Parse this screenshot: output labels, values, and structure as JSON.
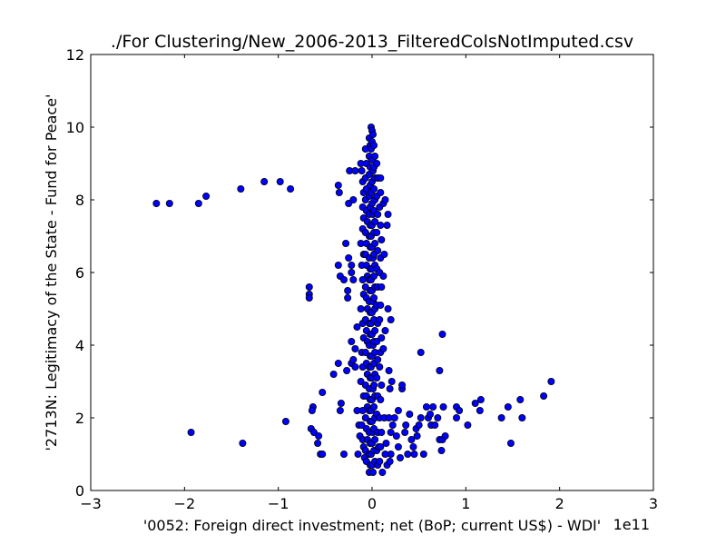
{
  "chart_data": {
    "type": "scatter",
    "title": "./For Clustering/New_2006-2013_FilteredColsNotImputed.csv",
    "xlabel": "'0052: Foreign direct investment; net  (BoP; current US$) - WDI'",
    "ylabel": "'2713N: Legitimacy of the State - Fund for Peace'",
    "x_offset_text": "1e11",
    "xlim": [
      -3,
      3
    ],
    "ylim": [
      0,
      12
    ],
    "x_ticks": [
      -3,
      -2,
      -1,
      0,
      1,
      2,
      3
    ],
    "x_tick_labels": [
      "−3",
      "−2",
      "−1",
      "0",
      "1",
      "2",
      "3"
    ],
    "y_ticks": [
      0,
      2,
      4,
      6,
      8,
      10,
      12
    ],
    "y_tick_labels": [
      "0",
      "2",
      "4",
      "6",
      "8",
      "10",
      "12"
    ],
    "grid": false,
    "marker_color": "#0000ff",
    "marker_edge_color": "#000000",
    "points": [
      [
        -2.3,
        7.9
      ],
      [
        -2.16,
        7.9
      ],
      [
        -1.85,
        7.9
      ],
      [
        -1.77,
        8.1
      ],
      [
        -1.4,
        8.3
      ],
      [
        -1.15,
        8.5
      ],
      [
        -0.98,
        8.5
      ],
      [
        -0.87,
        8.3
      ],
      [
        -1.93,
        1.6
      ],
      [
        -1.38,
        1.3
      ],
      [
        -0.92,
        1.9
      ],
      [
        -0.67,
        5.6
      ],
      [
        -0.67,
        5.4
      ],
      [
        -0.67,
        5.3
      ],
      [
        -0.63,
        2.3
      ],
      [
        -0.64,
        2.2
      ],
      [
        -0.65,
        1.7
      ],
      [
        -0.62,
        1.6
      ],
      [
        -0.57,
        1.5
      ],
      [
        -0.58,
        1.3
      ],
      [
        -0.55,
        1.0
      ],
      [
        -0.53,
        1.0
      ],
      [
        -0.53,
        2.7
      ],
      [
        -0.41,
        3.2
      ],
      [
        -0.36,
        3.5
      ],
      [
        -0.33,
        2.4
      ],
      [
        -0.34,
        2.2
      ],
      [
        -0.3,
        1.0
      ],
      [
        -0.27,
        3.3
      ],
      [
        -0.36,
        8.4
      ],
      [
        -0.35,
        8.2
      ],
      [
        -0.25,
        7.9
      ],
      [
        -0.2,
        8.0
      ],
      [
        -0.24,
        8.8
      ],
      [
        -0.18,
        8.8
      ],
      [
        -0.36,
        6.2
      ],
      [
        -0.34,
        5.9
      ],
      [
        -0.3,
        5.8
      ],
      [
        -0.26,
        5.5
      ],
      [
        -0.28,
        6.8
      ],
      [
        -0.25,
        6.4
      ],
      [
        -0.22,
        6.0
      ],
      [
        -0.2,
        5.8
      ],
      [
        -0.26,
        5.3
      ],
      [
        -0.22,
        6.2
      ],
      [
        -0.22,
        3.5
      ],
      [
        -0.2,
        3.6
      ],
      [
        -0.18,
        3.4
      ],
      [
        -0.22,
        4.1
      ],
      [
        -0.18,
        3.9
      ],
      [
        -0.16,
        4.5
      ],
      [
        -0.16,
        2.2
      ],
      [
        -0.14,
        1.8
      ],
      [
        -0.13,
        1.5
      ],
      [
        -0.15,
        1.0
      ],
      [
        -0.12,
        9.0
      ],
      [
        -0.11,
        8.8
      ],
      [
        -0.1,
        8.5
      ],
      [
        -0.09,
        8.2
      ],
      [
        -0.1,
        7.8
      ],
      [
        -0.09,
        7.5
      ],
      [
        -0.1,
        7.2
      ],
      [
        -0.12,
        6.8
      ],
      [
        -0.09,
        6.5
      ],
      [
        -0.11,
        6.2
      ],
      [
        -0.1,
        5.8
      ],
      [
        -0.09,
        5.4
      ],
      [
        -0.12,
        5.0
      ],
      [
        -0.1,
        4.6
      ],
      [
        -0.09,
        4.2
      ],
      [
        -0.11,
        3.8
      ],
      [
        -0.1,
        3.4
      ],
      [
        -0.12,
        3.0
      ],
      [
        -0.09,
        2.6
      ],
      [
        -0.1,
        2.2
      ],
      [
        -0.11,
        1.8
      ],
      [
        -0.1,
        1.4
      ],
      [
        -0.09,
        1.2
      ],
      [
        -0.08,
        0.9
      ],
      [
        -0.07,
        9.4
      ],
      [
        -0.06,
        9.0
      ],
      [
        -0.07,
        8.6
      ],
      [
        -0.06,
        8.3
      ],
      [
        -0.07,
        8.0
      ],
      [
        -0.06,
        7.7
      ],
      [
        -0.05,
        7.4
      ],
      [
        -0.07,
        7.1
      ],
      [
        -0.06,
        6.8
      ],
      [
        -0.07,
        6.5
      ],
      [
        -0.06,
        6.2
      ],
      [
        -0.05,
        5.9
      ],
      [
        -0.07,
        5.6
      ],
      [
        -0.06,
        5.3
      ],
      [
        -0.05,
        5.0
      ],
      [
        -0.07,
        4.7
      ],
      [
        -0.06,
        4.4
      ],
      [
        -0.05,
        4.1
      ],
      [
        -0.07,
        3.8
      ],
      [
        -0.06,
        3.5
      ],
      [
        -0.05,
        3.2
      ],
      [
        -0.07,
        2.9
      ],
      [
        -0.06,
        2.6
      ],
      [
        -0.05,
        2.3
      ],
      [
        -0.07,
        2.0
      ],
      [
        -0.06,
        1.7
      ],
      [
        -0.05,
        1.4
      ],
      [
        -0.07,
        1.1
      ],
      [
        -0.06,
        0.8
      ],
      [
        -0.03,
        0.5
      ],
      [
        -0.03,
        9.7
      ],
      [
        -0.02,
        9.5
      ],
      [
        -0.03,
        9.2
      ],
      [
        -0.02,
        8.9
      ],
      [
        -0.03,
        8.7
      ],
      [
        -0.02,
        8.4
      ],
      [
        -0.03,
        8.1
      ],
      [
        -0.02,
        7.8
      ],
      [
        -0.03,
        7.6
      ],
      [
        -0.02,
        7.3
      ],
      [
        -0.03,
        7.0
      ],
      [
        -0.02,
        6.7
      ],
      [
        -0.03,
        6.4
      ],
      [
        -0.02,
        6.1
      ],
      [
        -0.03,
        5.8
      ],
      [
        -0.02,
        5.5
      ],
      [
        -0.03,
        5.2
      ],
      [
        -0.02,
        4.9
      ],
      [
        -0.03,
        4.6
      ],
      [
        -0.02,
        4.3
      ],
      [
        -0.03,
        4.0
      ],
      [
        -0.02,
        3.7
      ],
      [
        -0.03,
        3.4
      ],
      [
        -0.02,
        3.1
      ],
      [
        -0.03,
        2.8
      ],
      [
        -0.02,
        2.5
      ],
      [
        -0.03,
        2.2
      ],
      [
        -0.02,
        1.9
      ],
      [
        -0.03,
        1.6
      ],
      [
        -0.02,
        1.3
      ],
      [
        -0.03,
        1.0
      ],
      [
        -0.02,
        0.7
      ],
      [
        -0.01,
        10.0
      ],
      [
        0.0,
        9.9
      ],
      [
        0.01,
        9.8
      ],
      [
        0.0,
        9.6
      ],
      [
        -0.01,
        9.4
      ],
      [
        0.0,
        9.1
      ],
      [
        0.01,
        8.8
      ],
      [
        0.0,
        8.5
      ],
      [
        -0.01,
        8.2
      ],
      [
        0.0,
        7.9
      ],
      [
        0.01,
        7.6
      ],
      [
        0.0,
        7.3
      ],
      [
        -0.01,
        7.0
      ],
      [
        0.0,
        6.7
      ],
      [
        0.01,
        6.4
      ],
      [
        0.0,
        6.1
      ],
      [
        -0.01,
        5.8
      ],
      [
        0.0,
        5.5
      ],
      [
        0.01,
        5.2
      ],
      [
        0.0,
        4.9
      ],
      [
        -0.01,
        4.6
      ],
      [
        0.0,
        4.3
      ],
      [
        0.01,
        4.0
      ],
      [
        0.0,
        3.7
      ],
      [
        -0.01,
        3.4
      ],
      [
        0.0,
        3.1
      ],
      [
        0.01,
        2.8
      ],
      [
        0.0,
        2.5
      ],
      [
        -0.01,
        2.2
      ],
      [
        0.0,
        1.9
      ],
      [
        0.01,
        1.6
      ],
      [
        0.0,
        1.3
      ],
      [
        -0.01,
        1.0
      ],
      [
        0.0,
        0.7
      ],
      [
        0.01,
        0.5
      ],
      [
        0.02,
        9.5
      ],
      [
        0.03,
        9.2
      ],
      [
        0.02,
        8.9
      ],
      [
        0.03,
        8.6
      ],
      [
        0.02,
        8.3
      ],
      [
        0.03,
        8.0
      ],
      [
        0.02,
        7.7
      ],
      [
        0.03,
        7.4
      ],
      [
        0.02,
        7.1
      ],
      [
        0.03,
        6.8
      ],
      [
        0.02,
        6.5
      ],
      [
        0.03,
        6.2
      ],
      [
        0.02,
        5.9
      ],
      [
        0.03,
        5.6
      ],
      [
        0.02,
        5.3
      ],
      [
        0.03,
        5.0
      ],
      [
        0.02,
        4.7
      ],
      [
        0.03,
        4.4
      ],
      [
        0.02,
        4.1
      ],
      [
        0.03,
        3.8
      ],
      [
        0.02,
        3.5
      ],
      [
        0.03,
        3.2
      ],
      [
        0.02,
        2.9
      ],
      [
        0.03,
        2.6
      ],
      [
        0.02,
        2.3
      ],
      [
        0.03,
        2.0
      ],
      [
        0.02,
        1.7
      ],
      [
        0.03,
        1.4
      ],
      [
        0.02,
        1.1
      ],
      [
        0.03,
        0.8
      ],
      [
        0.05,
        9.0
      ],
      [
        0.06,
        8.6
      ],
      [
        0.05,
        8.1
      ],
      [
        0.06,
        7.6
      ],
      [
        0.05,
        7.1
      ],
      [
        0.06,
        6.6
      ],
      [
        0.05,
        6.1
      ],
      [
        0.06,
        5.6
      ],
      [
        0.05,
        5.1
      ],
      [
        0.06,
        4.6
      ],
      [
        0.05,
        4.1
      ],
      [
        0.06,
        3.6
      ],
      [
        0.05,
        3.1
      ],
      [
        0.06,
        2.6
      ],
      [
        0.05,
        2.1
      ],
      [
        0.06,
        1.6
      ],
      [
        0.05,
        1.1
      ],
      [
        0.06,
        0.7
      ],
      [
        0.07,
        1.2
      ],
      [
        0.09,
        8.6
      ],
      [
        0.09,
        8.2
      ],
      [
        0.08,
        7.8
      ],
      [
        0.09,
        7.3
      ],
      [
        0.1,
        6.9
      ],
      [
        0.09,
        6.4
      ],
      [
        0.08,
        6.0
      ],
      [
        0.1,
        5.6
      ],
      [
        0.09,
        5.1
      ],
      [
        0.08,
        4.7
      ],
      [
        0.1,
        4.2
      ],
      [
        0.09,
        3.8
      ],
      [
        0.08,
        3.4
      ],
      [
        0.1,
        2.9
      ],
      [
        0.09,
        2.5
      ],
      [
        0.08,
        2.0
      ],
      [
        0.1,
        1.6
      ],
      [
        0.09,
        1.2
      ],
      [
        0.08,
        0.8
      ],
      [
        0.11,
        0.5
      ],
      [
        0.12,
        7.9
      ],
      [
        0.14,
        8.0
      ],
      [
        0.13,
        6.5
      ],
      [
        0.12,
        5.9
      ],
      [
        0.14,
        4.4
      ],
      [
        0.12,
        3.9
      ],
      [
        0.13,
        2.0
      ],
      [
        0.15,
        1.3
      ],
      [
        0.14,
        1.0
      ],
      [
        0.16,
        0.7
      ],
      [
        0.17,
        7.6
      ],
      [
        0.16,
        7.3
      ],
      [
        0.17,
        5.0
      ],
      [
        0.18,
        3.3
      ],
      [
        0.19,
        2.8
      ],
      [
        0.18,
        2.0
      ],
      [
        0.2,
        1.6
      ],
      [
        0.2,
        1.0
      ],
      [
        0.19,
        0.8
      ],
      [
        0.2,
        4.7
      ],
      [
        0.21,
        3.0
      ],
      [
        0.22,
        1.8
      ],
      [
        0.24,
        2.0
      ],
      [
        0.26,
        1.5
      ],
      [
        0.28,
        1.2
      ],
      [
        0.3,
        0.9
      ],
      [
        0.28,
        2.2
      ],
      [
        0.32,
        2.8
      ],
      [
        0.32,
        2.9
      ],
      [
        0.35,
        1.6
      ],
      [
        0.36,
        1.8
      ],
      [
        0.38,
        1.0
      ],
      [
        0.4,
        2.1
      ],
      [
        0.42,
        1.4
      ],
      [
        0.44,
        1.2
      ],
      [
        0.45,
        1.0
      ],
      [
        0.47,
        1.7
      ],
      [
        0.48,
        1.5
      ],
      [
        0.5,
        1.8
      ],
      [
        0.52,
        2.0
      ],
      [
        0.52,
        3.8
      ],
      [
        0.55,
        1.0
      ],
      [
        0.58,
        2.3
      ],
      [
        0.6,
        2.0
      ],
      [
        0.62,
        2.1
      ],
      [
        0.63,
        1.8
      ],
      [
        0.65,
        2.3
      ],
      [
        0.67,
        1.8
      ],
      [
        0.7,
        2.0
      ],
      [
        0.72,
        1.4
      ],
      [
        0.72,
        3.3
      ],
      [
        0.74,
        1.1
      ],
      [
        0.75,
        1.4
      ],
      [
        0.75,
        4.3
      ],
      [
        0.76,
        2.3
      ],
      [
        0.78,
        1.5
      ],
      [
        0.9,
        2.0
      ],
      [
        0.9,
        2.3
      ],
      [
        0.93,
        2.2
      ],
      [
        1.02,
        1.8
      ],
      [
        1.1,
        2.4
      ],
      [
        1.15,
        2.2
      ],
      [
        1.16,
        2.5
      ],
      [
        1.38,
        2.0
      ],
      [
        1.45,
        2.3
      ],
      [
        1.48,
        1.3
      ],
      [
        1.58,
        2.5
      ],
      [
        1.6,
        2.0
      ],
      [
        1.83,
        2.6
      ],
      [
        1.91,
        3.0
      ]
    ]
  }
}
